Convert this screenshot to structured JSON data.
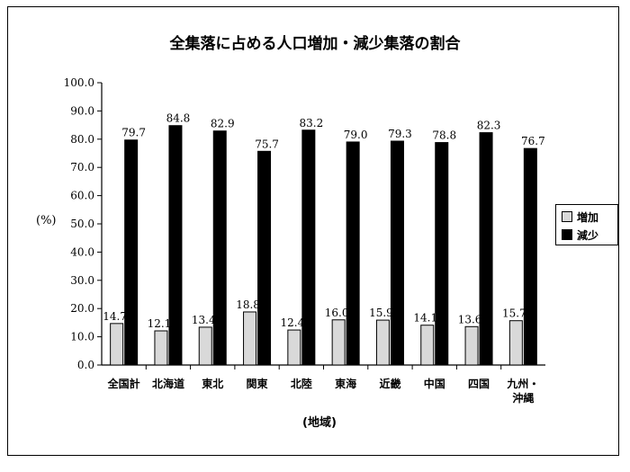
{
  "chart_data": {
    "type": "bar",
    "title": "全集落に占める人口増加・減少集落の割合",
    "ylabel": "(%)",
    "xlabel": "(地域)",
    "ylim": [
      0,
      100
    ],
    "yticks": [
      "0.0",
      "10.0",
      "20.0",
      "30.0",
      "40.0",
      "50.0",
      "60.0",
      "70.0",
      "80.0",
      "90.0",
      "100.0"
    ],
    "categories": [
      "全国計",
      "北海道",
      "東北",
      "関東",
      "北陸",
      "東海",
      "近畿",
      "中国",
      "四国",
      "九州・沖縄"
    ],
    "category_lines": [
      [
        "全国計"
      ],
      [
        "北海道"
      ],
      [
        "東北"
      ],
      [
        "関東"
      ],
      [
        "北陸"
      ],
      [
        "東海"
      ],
      [
        "近畿"
      ],
      [
        "中国"
      ],
      [
        "四国"
      ],
      [
        "九州・",
        "沖縄"
      ]
    ],
    "series": [
      {
        "name": "増加",
        "values": [
          14.7,
          12.1,
          13.4,
          18.8,
          12.4,
          16.0,
          15.9,
          14.1,
          13.6,
          15.7
        ],
        "color": "#d9d9d9"
      },
      {
        "name": "減少",
        "values": [
          79.7,
          84.8,
          82.9,
          75.7,
          83.2,
          79.0,
          79.3,
          78.8,
          82.3,
          76.7
        ],
        "color": "#000000"
      }
    ],
    "legend": "right",
    "grid": false
  }
}
